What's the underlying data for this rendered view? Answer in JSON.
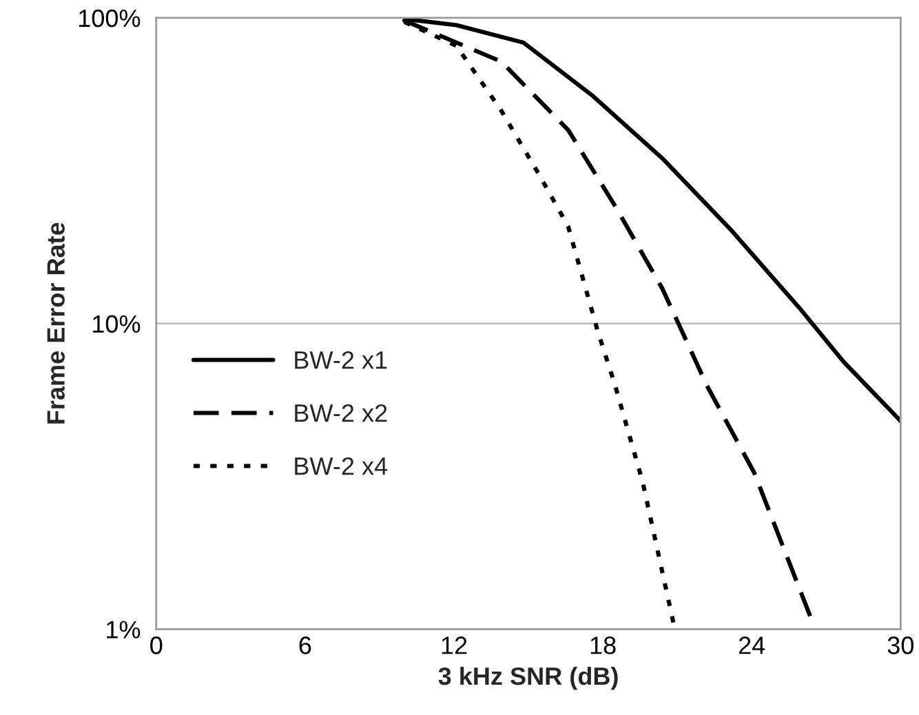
{
  "chart_data": {
    "type": "line",
    "xlabel": "3 kHz SNR (dB)",
    "ylabel": "Frame Error Rate",
    "log": "y",
    "xlim": [
      0,
      30
    ],
    "ylim": [
      1,
      100
    ],
    "xticks": [
      0,
      6,
      12,
      18,
      24,
      30
    ],
    "yticks": [
      {
        "value": 1,
        "label": "1%"
      },
      {
        "value": 10,
        "label": "10%"
      },
      {
        "value": 100,
        "label": "100%"
      }
    ],
    "grid": "y",
    "legend": "center left",
    "marker": "none",
    "series": [
      {
        "name": "BW-2 x1",
        "color": "#000000",
        "line_style": "solid",
        "x": [
          10,
          10.1,
          12.1,
          14.8,
          17.6,
          20.4,
          23.2,
          25.9,
          27.7,
          30
        ],
        "values": [
          98,
          99,
          94.7,
          83,
          55.5,
          34.7,
          20.1,
          11.3,
          7.5,
          4.8
        ]
      },
      {
        "name": "BW-2 x2",
        "color": "#000000",
        "line_style": "dashed",
        "x": [
          10,
          13.9,
          16.6,
          18.5,
          20.4,
          22.2,
          24.1,
          26.4
        ],
        "values": [
          98,
          72,
          43,
          24.2,
          13,
          6.25,
          3.25,
          1.08
        ]
      },
      {
        "name": "BW-2 x4",
        "color": "#000000",
        "line_style": "dotted",
        "x": [
          10,
          12.1,
          13.9,
          15.4,
          16.6,
          17.8,
          18.5,
          19.6,
          20.9
        ],
        "values": [
          97,
          81,
          49.8,
          31,
          20.8,
          9.4,
          6.25,
          3.04,
          1
        ]
      }
    ]
  }
}
